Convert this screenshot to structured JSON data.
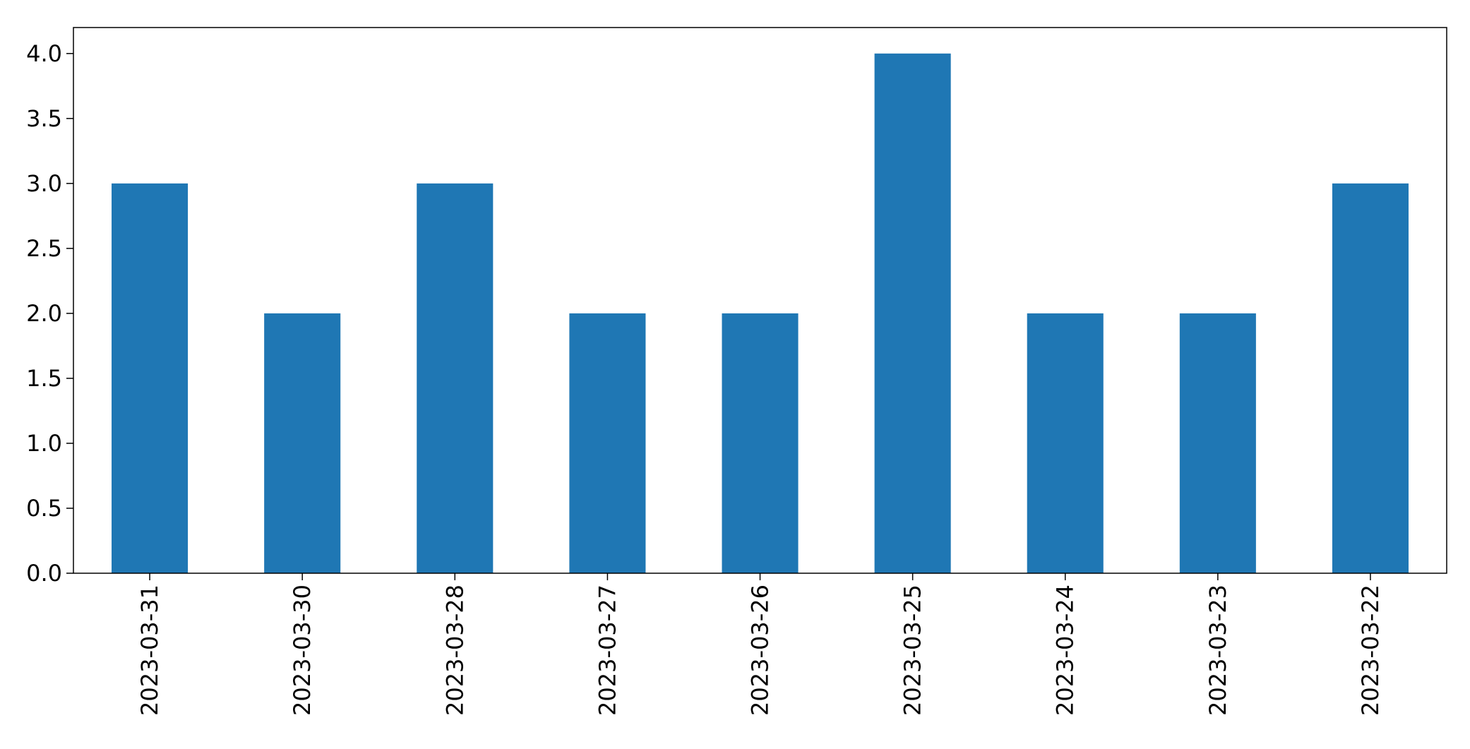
{
  "chart_data": {
    "type": "bar",
    "categories": [
      "2023-03-31",
      "2023-03-30",
      "2023-03-28",
      "2023-03-27",
      "2023-03-26",
      "2023-03-25",
      "2023-03-24",
      "2023-03-23",
      "2023-03-22"
    ],
    "values": [
      3,
      2,
      3,
      2,
      2,
      4,
      2,
      2,
      3
    ],
    "title": "",
    "xlabel": "",
    "ylabel": "",
    "ylim": [
      0,
      4.2
    ],
    "yticks": [
      "0.0",
      "0.5",
      "1.0",
      "1.5",
      "2.0",
      "2.5",
      "3.0",
      "3.5",
      "4.0"
    ],
    "grid": false,
    "bar_color": "#1f77b4",
    "xtick_rotation": "vertical"
  }
}
